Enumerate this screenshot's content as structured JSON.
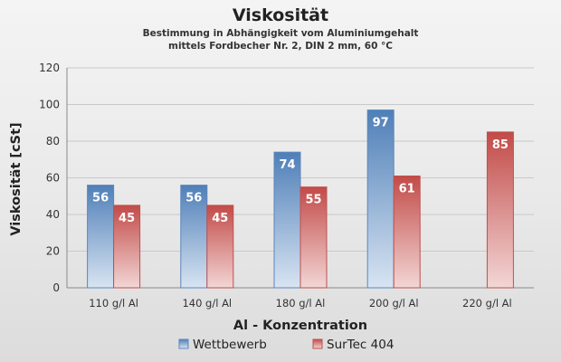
{
  "chart_data": {
    "type": "bar",
    "title": "Viskosität",
    "subtitle_lines": [
      "Bestimmung in Abhängigkeit vom Aluminiumgehalt",
      "mittels Fordbecher Nr. 2, DIN 2 mm, 60 °C"
    ],
    "xlabel": "Al - Konzentration",
    "ylabel": "Viskosität [cSt]",
    "ylim": [
      0,
      120
    ],
    "yticks": [
      0,
      20,
      40,
      60,
      80,
      100,
      120
    ],
    "grid": true,
    "legend_position": "bottom",
    "categories": [
      "110 g/l Al",
      "140 g/l Al",
      "180 g/l Al",
      "200 g/l Al",
      "220 g/l Al"
    ],
    "series": [
      {
        "name": "Wettbewerb",
        "color": "#5b86bd",
        "values": [
          56,
          56,
          74,
          97,
          null
        ]
      },
      {
        "name": "SurTec 404",
        "color": "#c0504d",
        "values": [
          45,
          45,
          55,
          61,
          85
        ]
      }
    ]
  }
}
